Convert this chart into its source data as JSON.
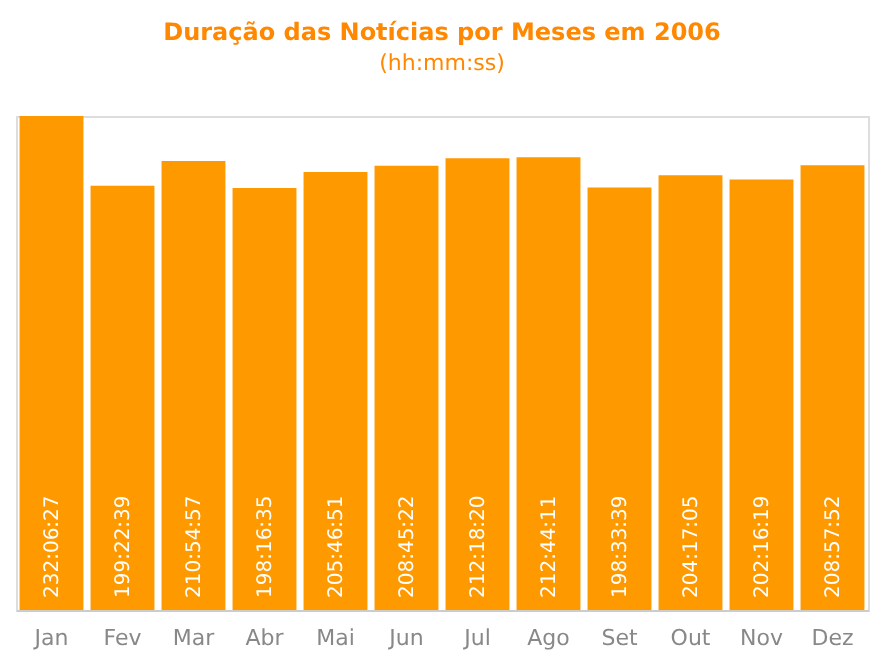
{
  "chart_data": {
    "type": "bar",
    "title": "Duração das Notícias por Meses em 2006",
    "subtitle": "(hh:mm:ss)",
    "categories": [
      "Jan",
      "Fev",
      "Mar",
      "Abr",
      "Mai",
      "Jun",
      "Jul",
      "Ago",
      "Set",
      "Out",
      "Nov",
      "Dez"
    ],
    "values": [
      232.1075,
      199.3775,
      210.9158,
      198.2764,
      205.7808,
      208.7561,
      212.3056,
      212.7364,
      198.5608,
      204.2847,
      202.2719,
      208.9644
    ],
    "value_labels": [
      "232:06:27",
      "199:22:39",
      "210:54:57",
      "198:16:35",
      "205:46:51",
      "208:45:22",
      "212:18:20",
      "212:44:11",
      "198:33:39",
      "204:17:05",
      "202:16:19",
      "208:57:52"
    ],
    "color": "#ff9900",
    "grid": false
  }
}
